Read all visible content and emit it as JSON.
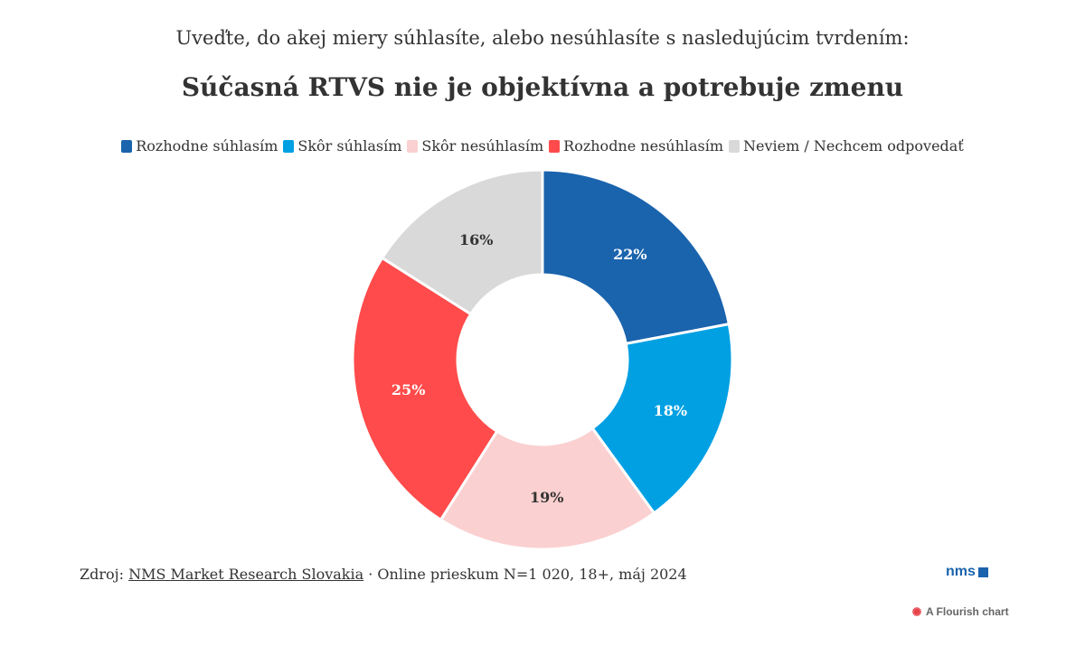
{
  "header": {
    "subtitle": "Uveďte, do akej miery súhlasíte, alebo nesúhlasíte s nasledujúcim tvrdením:",
    "title": "Súčasná RTVS nie je objektívna a potrebuje zmenu"
  },
  "chart_data": {
    "type": "pie",
    "donut": true,
    "title": "Súčasná RTVS nie je objektívna a potrebuje zmenu",
    "subtitle": "Uveďte, do akej miery súhlasíte, alebo nesúhlasíte s nasledujúcim tvrdením:",
    "legend_position": "top",
    "slices": [
      {
        "label": "Rozhodne súhlasím",
        "value": 22,
        "value_label": "22%",
        "color": "#1a63ad",
        "label_color": "#ffffff"
      },
      {
        "label": "Skôr súhlasím",
        "value": 18,
        "value_label": "18%",
        "color": "#00a0e3",
        "label_color": "#ffffff"
      },
      {
        "label": "Skôr nesúhlasím",
        "value": 19,
        "value_label": "19%",
        "color": "#fbd0d0",
        "label_color": "#333333"
      },
      {
        "label": "Rozhodne nesúhlasím",
        "value": 25,
        "value_label": "25%",
        "color": "#ff4b4b",
        "label_color": "#ffffff"
      },
      {
        "label": "Neviem / Nechcem odpovedať",
        "value": 16,
        "value_label": "16%",
        "color": "#d9d9d9",
        "label_color": "#333333"
      }
    ]
  },
  "footer": {
    "source_prefix": "Zdroj: ",
    "source_link": "NMS Market Research Slovakia",
    "source_suffix": " · Online prieskum N=1 020, 18+, máj 2024"
  },
  "brand": {
    "logo_text": "nms",
    "color": "#1a63ad"
  },
  "flourish": {
    "label": "A Flourish chart",
    "icon": "flourish-burst-icon",
    "icon_color": "#e8434b"
  }
}
